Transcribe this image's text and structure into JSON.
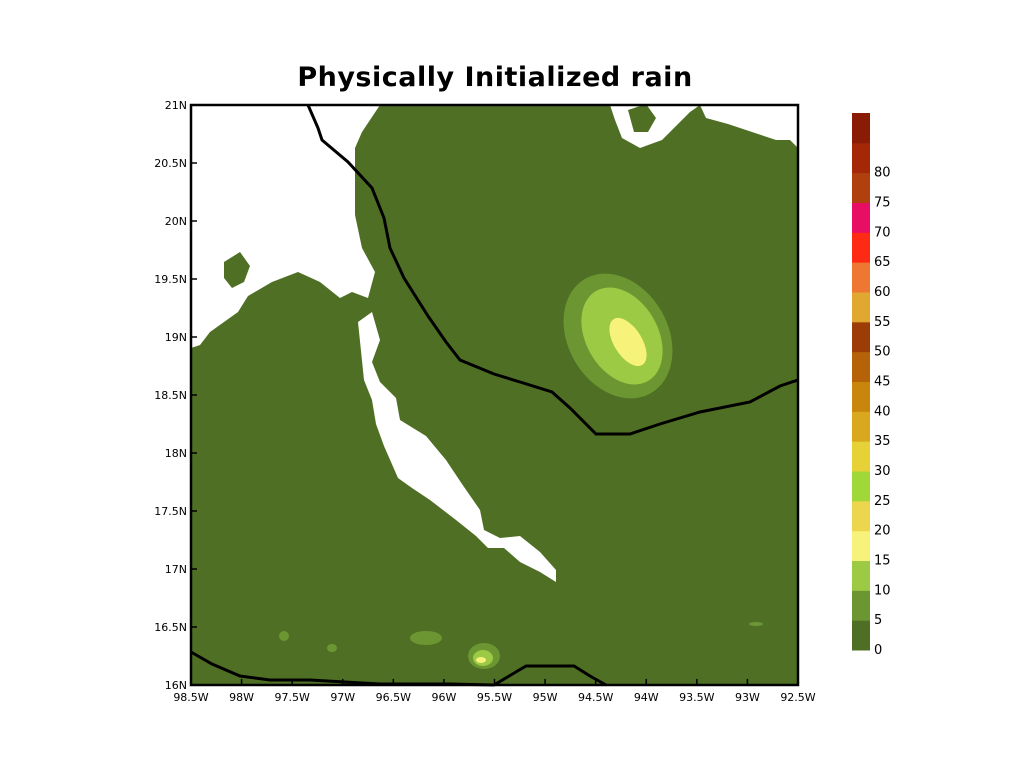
{
  "title": "Physically Initialized rain",
  "map": {
    "lon_ticks": [
      "98.5W",
      "98W",
      "97.5W",
      "97W",
      "96.5W",
      "96W",
      "95.5W",
      "95W",
      "94.5W",
      "94W",
      "93.5W",
      "93W",
      "92.5W"
    ],
    "lat_ticks": [
      "16N",
      "16.5N",
      "17N",
      "17.5N",
      "18N",
      "18.5N",
      "19N",
      "19.5N",
      "20N",
      "20.5N",
      "21N"
    ],
    "lon_range": [
      -98.5,
      -92.5
    ],
    "lat_range": [
      16,
      21
    ],
    "background_fill": "#4f7024",
    "missing_fill": "#ffffff",
    "coastline_color": "#000000"
  },
  "colorbar": {
    "labels": [
      "0",
      "5",
      "10",
      "15",
      "20",
      "25",
      "30",
      "35",
      "40",
      "45",
      "50",
      "55",
      "60",
      "65",
      "70",
      "75",
      "80"
    ],
    "colors": [
      "#4f7024",
      "#6b9632",
      "#9cca44",
      "#f6f27a",
      "#ecd64e",
      "#a0d83a",
      "#e6d236",
      "#d9a81e",
      "#c8860c",
      "#b56208",
      "#9c3c06",
      "#e0a830",
      "#ee7832",
      "#ff2a14",
      "#e80e64",
      "#b0400e",
      "#a42808",
      "#8a1c06"
    ]
  }
}
